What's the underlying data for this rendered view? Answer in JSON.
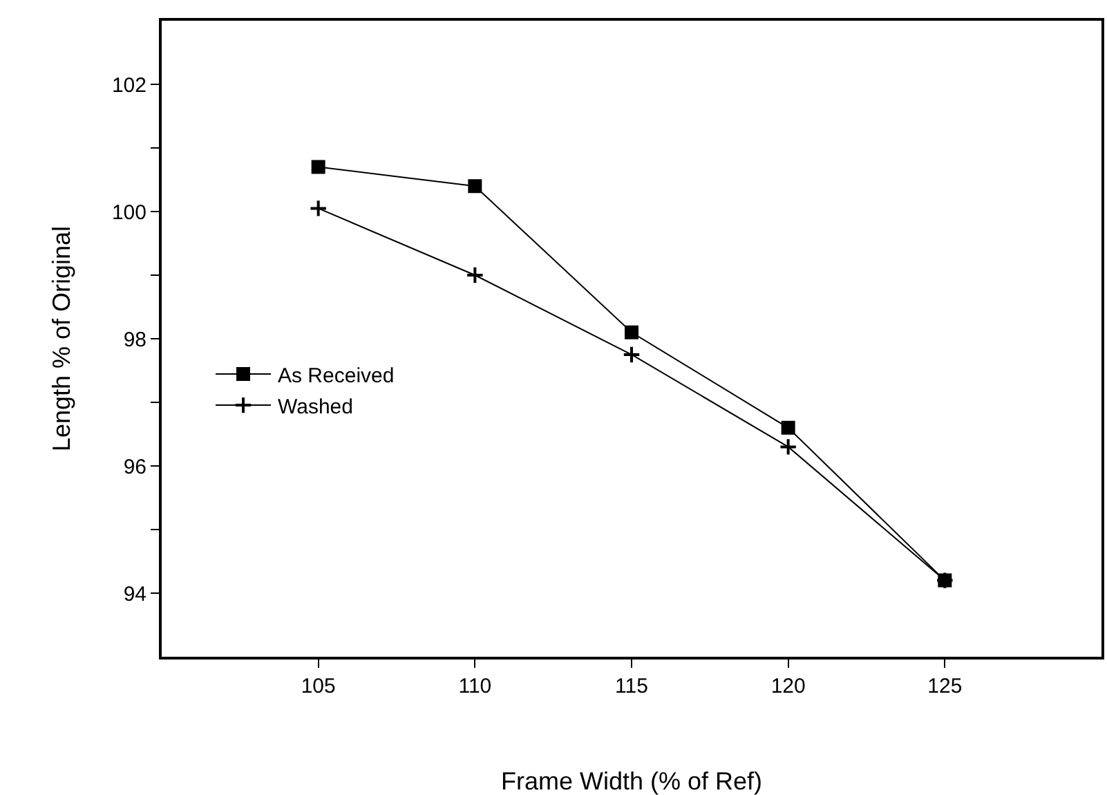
{
  "chart_data": {
    "type": "line",
    "xlabel": "Frame Width (% of Ref)",
    "ylabel": "Length % of Original",
    "x": [
      105,
      110,
      115,
      120,
      125
    ],
    "series": [
      {
        "name": "As Received",
        "color": "#000000",
        "marker": "square",
        "values": [
          100.7,
          100.4,
          98.1,
          96.6,
          94.2
        ]
      },
      {
        "name": "Washed",
        "color": "#000000",
        "marker": "cross",
        "values": [
          100.05,
          99.0,
          97.75,
          96.3,
          94.2
        ]
      }
    ],
    "xlim": [
      100,
      130
    ],
    "xticks": [
      105,
      110,
      115,
      120,
      125
    ],
    "ylim": [
      93,
      103
    ],
    "yticks": [
      {
        "value": 94,
        "label": "94"
      },
      {
        "value": 95,
        "label": null
      },
      {
        "value": 96,
        "label": "96"
      },
      {
        "value": 97,
        "label": null
      },
      {
        "value": 98,
        "label": "98"
      },
      {
        "value": 99,
        "label": null
      },
      {
        "value": 100,
        "label": "100"
      },
      {
        "value": 101,
        "label": null
      },
      {
        "value": 102,
        "label": "102"
      }
    ],
    "grid": false,
    "legend": "left",
    "line_style": "solid"
  }
}
